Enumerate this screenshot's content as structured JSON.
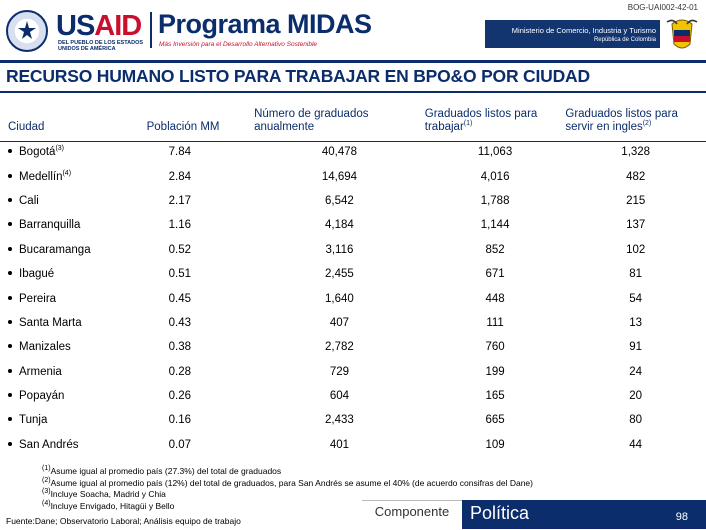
{
  "header": {
    "doc_id": "BOG-UAI002-42-01",
    "usaid_word_a": "US",
    "usaid_word_b": "AID",
    "usaid_sub": "DEL PUEBLO DE LOS ESTADOS UNIDOS DE AMÉRICA",
    "program_title": "Programa MIDAS",
    "program_tagline": "Más Inversión para el Desarrollo Alternativo Sostenible",
    "ministry": "Ministerio de Comercio, Industria y Turismo",
    "ministry_sub": "República de Colombia",
    "colors": {
      "navy": "#0b2d6b",
      "red": "#c8102e"
    }
  },
  "title": "RECURSO HUMANO LISTO PARA TRABAJAR EN BPO&O POR CIUDAD",
  "table": {
    "headers": {
      "city": "Ciudad",
      "population": "Población MM",
      "graduates": "Número de graduados anualmente",
      "ready": "Graduados listos para trabajar",
      "ready_sup": "(1)",
      "english": "Graduados listos para servir en ingles",
      "english_sup": "(2)"
    },
    "rows": [
      {
        "city": "Bogotá",
        "sup": "(3)",
        "population": "7.84",
        "graduates": "40,478",
        "ready": "11,063",
        "english": "1,328"
      },
      {
        "city": "Medellín",
        "sup": "(4)",
        "population": "2.84",
        "graduates": "14,694",
        "ready": "4,016",
        "english": "482"
      },
      {
        "city": "Cali",
        "sup": "",
        "population": "2.17",
        "graduates": "6,542",
        "ready": "1,788",
        "english": "215"
      },
      {
        "city": "Barranquilla",
        "sup": "",
        "population": "1.16",
        "graduates": "4,184",
        "ready": "1,144",
        "english": "137"
      },
      {
        "city": "Bucaramanga",
        "sup": "",
        "population": "0.52",
        "graduates": "3,116",
        "ready": "852",
        "english": "102"
      },
      {
        "city": "Ibagué",
        "sup": "",
        "population": "0.51",
        "graduates": "2,455",
        "ready": "671",
        "english": "81"
      },
      {
        "city": "Pereira",
        "sup": "",
        "population": "0.45",
        "graduates": "1,640",
        "ready": "448",
        "english": "54"
      },
      {
        "city": "Santa Marta",
        "sup": "",
        "population": "0.43",
        "graduates": "407",
        "ready": "111",
        "english": "13"
      },
      {
        "city": "Manizales",
        "sup": "",
        "population": "0.38",
        "graduates": "2,782",
        "ready": "760",
        "english": "91"
      },
      {
        "city": "Armenia",
        "sup": "",
        "population": "0.28",
        "graduates": "729",
        "ready": "199",
        "english": "24"
      },
      {
        "city": "Popayán",
        "sup": "",
        "population": "0.26",
        "graduates": "604",
        "ready": "165",
        "english": "20"
      },
      {
        "city": "Tunja",
        "sup": "",
        "population": "0.16",
        "graduates": "2,433",
        "ready": "665",
        "english": "80"
      },
      {
        "city": "San Andrés",
        "sup": "",
        "population": "0.07",
        "graduates": "401",
        "ready": "109",
        "english": "44"
      }
    ]
  },
  "notes": [
    {
      "sup": "(1)",
      "text": "Asume igual al promedio país (27.3%) del total de graduados"
    },
    {
      "sup": "(2)",
      "text": "Asume igual al promedio país (12%) del total de graduados, para San Andrés se asume el 40% (de acuerdo consifras del Dane)"
    },
    {
      "sup": "(3)",
      "text": "Incluye Soacha, Madrid y Chia"
    },
    {
      "sup": "(4)",
      "text": "Incluye Envigado, Hitagüi y Bello"
    }
  ],
  "source": "Fuente:Dane; Observatorio Laboral; Análisis equipo de trabajo",
  "footer": {
    "tab_componente": "Componente",
    "tab_politica": "Política",
    "page_number": "98"
  }
}
